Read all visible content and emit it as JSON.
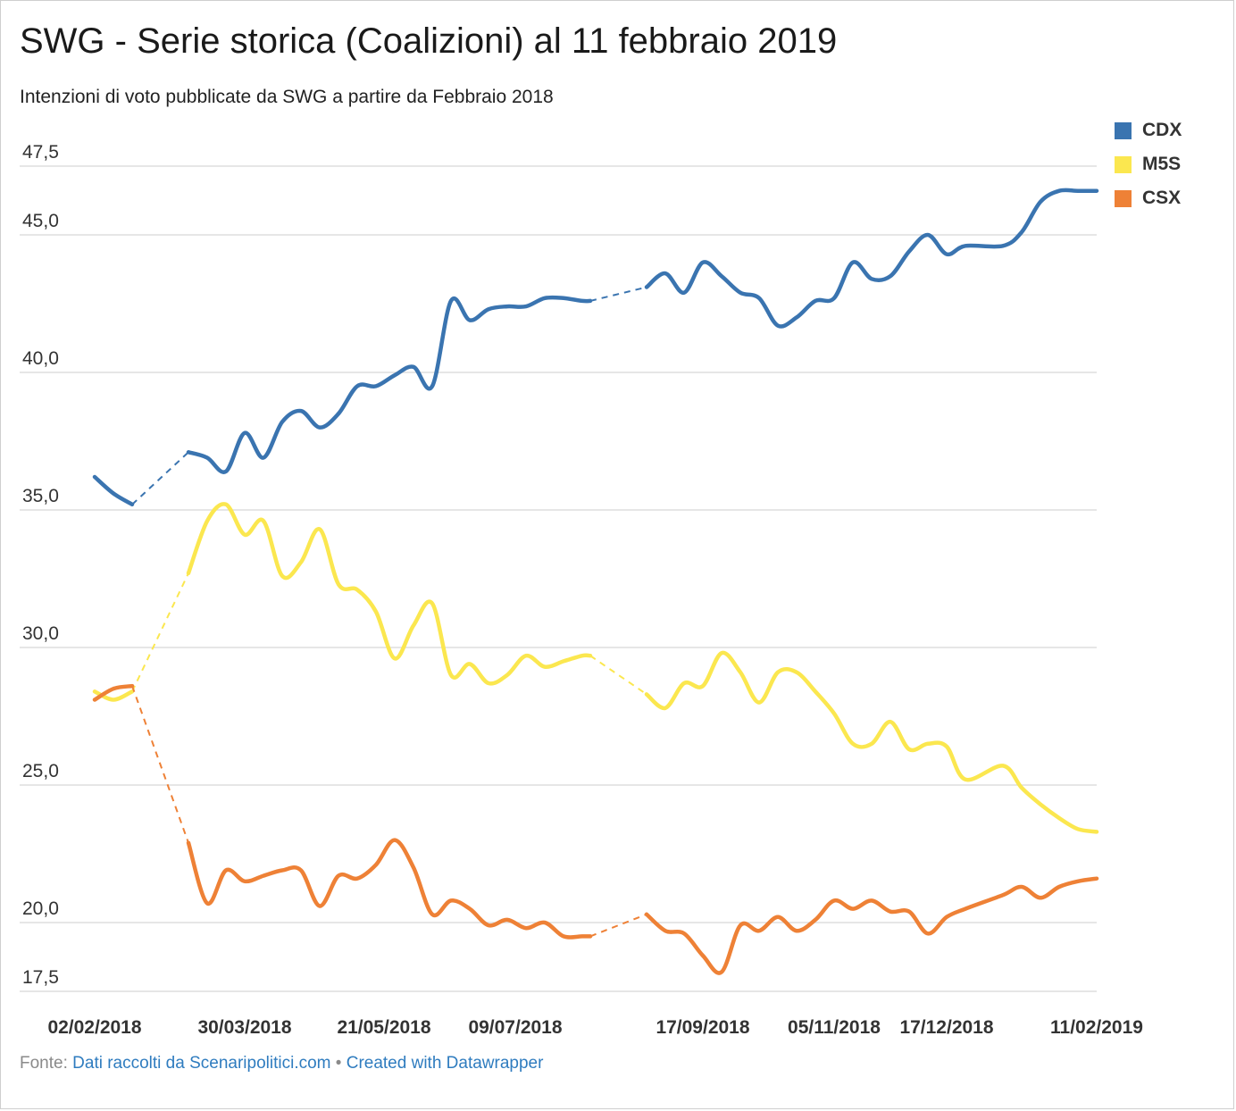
{
  "title": "SWG - Serie storica (Coalizioni) al 11 febbraio 2019",
  "subtitle": "Intenzioni di voto pubblicate da SWG a partire da Febbraio 2018",
  "source": {
    "prefix": "Fonte:",
    "link_text": "Dati raccolti da Scenaripolitici.com",
    "separator": "•",
    "credit": "Created with Datawrapper"
  },
  "chart_data": {
    "type": "line",
    "ylim": [
      17.5,
      47.5
    ],
    "yticks": [
      17.5,
      20,
      25,
      30,
      35,
      40,
      45,
      47.5
    ],
    "ytick_labels": [
      "17,5",
      "20,0",
      "25,0",
      "30,0",
      "35,0",
      "40,0",
      "45,0",
      "47,5"
    ],
    "xlim": [
      "2018-02-02",
      "2019-02-11"
    ],
    "xticks": [
      "2018-02-02",
      "2018-03-30",
      "2018-05-21",
      "2018-07-09",
      "2018-09-17",
      "2018-11-05",
      "2018-12-17",
      "2019-02-11"
    ],
    "xtick_labels": [
      "02/02/2018",
      "30/03/2018",
      "21/05/2018",
      "09/07/2018",
      "17/09/2018",
      "05/11/2018",
      "17/12/2018",
      "11/02/2019"
    ],
    "grid": true,
    "legend_position": "top-right",
    "gaps": [
      [
        "2018-02-16",
        "2018-03-09"
      ],
      [
        "2018-08-06",
        "2018-08-27"
      ]
    ],
    "x": [
      "2018-02-02",
      "2018-02-09",
      "2018-02-16",
      "2018-03-09",
      "2018-03-16",
      "2018-03-23",
      "2018-03-30",
      "2018-04-06",
      "2018-04-13",
      "2018-04-20",
      "2018-04-27",
      "2018-05-04",
      "2018-05-11",
      "2018-05-18",
      "2018-05-25",
      "2018-06-01",
      "2018-06-08",
      "2018-06-15",
      "2018-06-22",
      "2018-06-29",
      "2018-07-06",
      "2018-07-13",
      "2018-07-20",
      "2018-07-27",
      "2018-08-03",
      "2018-08-06",
      "2018-08-27",
      "2018-09-03",
      "2018-09-10",
      "2018-09-17",
      "2018-09-24",
      "2018-10-01",
      "2018-10-08",
      "2018-10-15",
      "2018-10-22",
      "2018-10-29",
      "2018-11-05",
      "2018-11-12",
      "2018-11-19",
      "2018-11-26",
      "2018-12-03",
      "2018-12-10",
      "2018-12-17",
      "2018-12-24",
      "2019-01-07",
      "2019-01-14",
      "2019-01-21",
      "2019-01-28",
      "2019-02-04",
      "2019-02-11"
    ],
    "series": [
      {
        "name": "CDX",
        "color": "#3a74b0",
        "values": [
          36.2,
          35.6,
          35.2,
          37.1,
          36.9,
          36.4,
          37.8,
          36.9,
          38.2,
          38.6,
          38.0,
          38.5,
          39.5,
          39.5,
          39.9,
          40.2,
          39.5,
          42.6,
          41.9,
          42.3,
          42.4,
          42.4,
          42.7,
          42.7,
          42.6,
          42.6,
          43.1,
          43.6,
          42.9,
          44.0,
          43.5,
          42.9,
          42.7,
          41.7,
          42.0,
          42.6,
          42.7,
          44.0,
          43.4,
          43.5,
          44.4,
          45.0,
          44.3,
          44.6,
          44.6,
          45.1,
          46.2,
          46.6,
          46.6,
          46.6
        ]
      },
      {
        "name": "M5S",
        "color": "#fbe74f",
        "values": [
          28.4,
          28.1,
          28.4,
          32.7,
          34.6,
          35.2,
          34.1,
          34.6,
          32.6,
          33.1,
          34.3,
          32.3,
          32.1,
          31.3,
          29.6,
          30.8,
          31.6,
          29.0,
          29.4,
          28.7,
          29.0,
          29.7,
          29.3,
          29.5,
          29.7,
          29.7,
          28.3,
          27.8,
          28.7,
          28.6,
          29.8,
          29.1,
          28.0,
          29.1,
          29.1,
          28.4,
          27.6,
          26.5,
          26.5,
          27.3,
          26.3,
          26.5,
          26.4,
          25.2,
          25.7,
          24.9,
          24.3,
          23.8,
          23.4,
          23.3
        ]
      },
      {
        "name": "CSX",
        "color": "#ee8136",
        "values": [
          28.1,
          28.5,
          28.6,
          22.9,
          20.7,
          21.9,
          21.5,
          21.7,
          21.9,
          21.9,
          20.6,
          21.7,
          21.6,
          22.1,
          23.0,
          22.0,
          20.3,
          20.8,
          20.5,
          19.9,
          20.1,
          19.8,
          20.0,
          19.5,
          19.5,
          19.5,
          20.3,
          19.7,
          19.6,
          18.8,
          18.2,
          19.9,
          19.7,
          20.2,
          19.7,
          20.1,
          20.8,
          20.5,
          20.8,
          20.4,
          20.4,
          19.6,
          20.2,
          20.5,
          21.0,
          21.3,
          20.9,
          21.3,
          21.5,
          21.6
        ]
      }
    ]
  }
}
